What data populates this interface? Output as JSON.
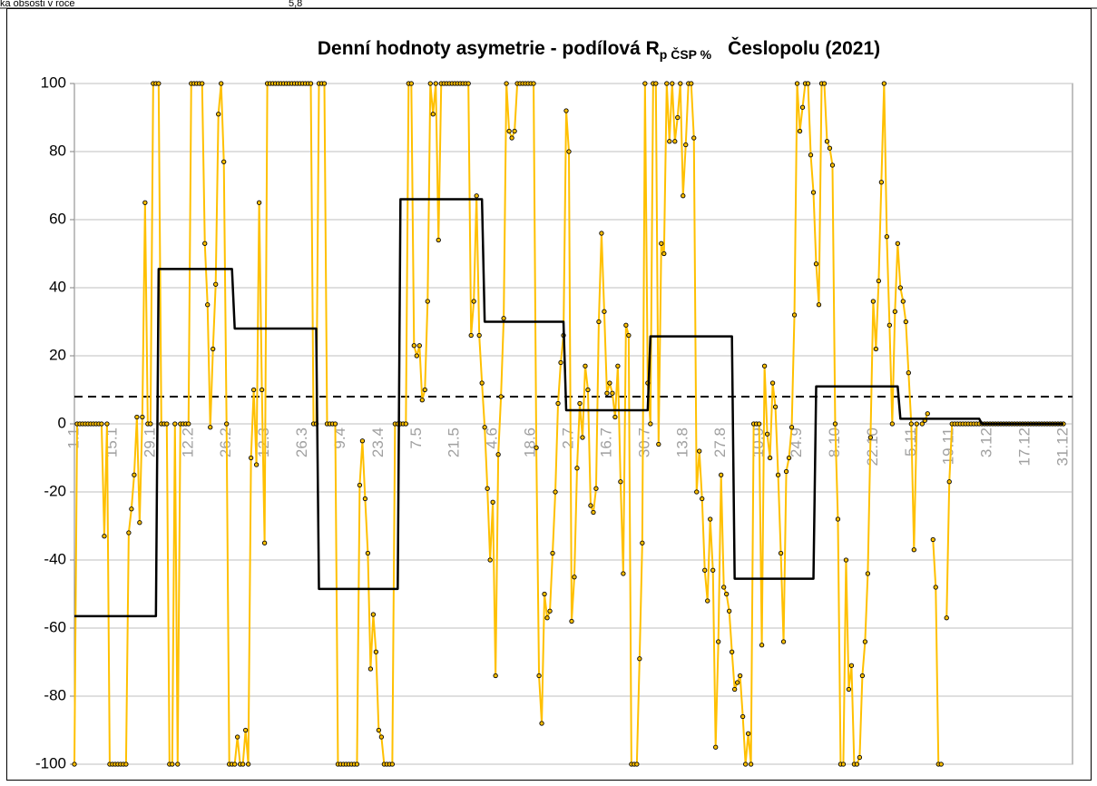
{
  "header_fragment": [
    "ka obsosti v roce",
    "5,8"
  ],
  "chart_data": {
    "type": "line",
    "title": "Denní hodnoty asymetrie - podílová R",
    "title_subscript": "p ČSP %",
    "title_end": "Česlopolu (2021)",
    "categories": [
      "1.1",
      null,
      null,
      null,
      null,
      null,
      null,
      null,
      null,
      null,
      null,
      null,
      null,
      null,
      "15.1",
      null,
      null,
      null,
      null,
      null,
      null,
      null,
      null,
      null,
      null,
      null,
      null,
      null,
      "29.1",
      null,
      null,
      null,
      null,
      null,
      null,
      null,
      null,
      null,
      null,
      null,
      null,
      null,
      "12.2",
      null,
      null,
      null,
      null,
      null,
      null,
      null,
      null,
      null,
      null,
      null,
      null,
      null,
      "26.2",
      null,
      null,
      null,
      null,
      null,
      null,
      null,
      null,
      null,
      null,
      null,
      null,
      null,
      "12.3",
      null,
      null,
      null,
      null,
      null,
      null,
      null,
      null,
      null,
      null,
      null,
      null,
      null,
      "26.3",
      null,
      null,
      null,
      null,
      null,
      null,
      null,
      null,
      null,
      null,
      null,
      null,
      null,
      "9.4",
      null,
      null,
      null,
      null,
      null,
      null,
      null,
      null,
      null,
      null,
      null,
      null,
      null,
      "23.4",
      null,
      null,
      null,
      null,
      null,
      null,
      null,
      null,
      null,
      null,
      null,
      null,
      null,
      "7.5",
      null,
      null,
      null,
      null,
      null,
      null,
      null,
      null,
      null,
      null,
      null,
      null,
      null,
      "21.5",
      null,
      null,
      null,
      null,
      null,
      null,
      null,
      null,
      null,
      null,
      null,
      null,
      null,
      "4.6",
      null,
      null,
      null,
      null,
      null,
      null,
      null,
      null,
      null,
      null,
      null,
      null,
      null,
      "18.6",
      null,
      null,
      null,
      null,
      null,
      null,
      null,
      null,
      null,
      null,
      null,
      null,
      null,
      "2.7",
      null,
      null,
      null,
      null,
      null,
      null,
      null,
      null,
      null,
      null,
      null,
      null,
      null,
      "16.7",
      null,
      null,
      null,
      null,
      null,
      null,
      null,
      null,
      null,
      null,
      null,
      null,
      null,
      "30.7",
      null,
      null,
      null,
      null,
      null,
      null,
      null,
      null,
      null,
      null,
      null,
      null,
      null,
      "13.8",
      null,
      null,
      null,
      null,
      null,
      null,
      null,
      null,
      null,
      null,
      null,
      null,
      null,
      "27.8",
      null,
      null,
      null,
      null,
      null,
      null,
      null,
      null,
      null,
      null,
      null,
      null,
      null,
      "10.9",
      null,
      null,
      null,
      null,
      null,
      null,
      null,
      null,
      null,
      null,
      null,
      null,
      null,
      "24.9",
      null,
      null,
      null,
      null,
      null,
      null,
      null,
      null,
      null,
      null,
      null,
      null,
      null,
      "8.10",
      null,
      null,
      null,
      null,
      null,
      null,
      null,
      null,
      null,
      null,
      null,
      null,
      null,
      "22.10",
      null,
      null,
      null,
      null,
      null,
      null,
      null,
      null,
      null,
      null,
      null,
      null,
      null,
      "5.11",
      null,
      null,
      null,
      null,
      null,
      null,
      null,
      null,
      null,
      null,
      null,
      null,
      null,
      "19.11",
      null,
      null,
      null,
      null,
      null,
      null,
      null,
      null,
      null,
      null,
      null,
      null,
      null,
      "3.12",
      null,
      null,
      null,
      null,
      null,
      null,
      null,
      null,
      null,
      null,
      null,
      null,
      null,
      "17.12",
      null,
      null,
      null,
      null,
      null,
      null,
      null,
      null,
      null,
      null,
      null,
      null,
      null,
      "31.12"
    ],
    "series": [
      {
        "color": "#FFC000",
        "markers": true,
        "values": [
          -100,
          0,
          0,
          0,
          0,
          0,
          0,
          0,
          0,
          0,
          0,
          -33,
          0,
          -100,
          -100,
          -100,
          -100,
          -100,
          -100,
          -100,
          -32,
          -25,
          -15,
          2,
          -29,
          2,
          65,
          0,
          0,
          100,
          100,
          100,
          0,
          0,
          0,
          -100,
          -100,
          0,
          -100,
          0,
          0,
          0,
          0,
          100,
          100,
          100,
          100,
          100,
          53,
          35,
          -1,
          22,
          41,
          91,
          100,
          77,
          0,
          -100,
          -100,
          -100,
          -92,
          -100,
          -100,
          -90,
          -100,
          -10,
          10,
          -12,
          65,
          10,
          -35,
          100,
          100,
          100,
          100,
          100,
          100,
          100,
          100,
          100,
          100,
          100,
          100,
          100,
          100,
          100,
          100,
          100,
          0,
          0,
          100,
          100,
          100,
          0,
          0,
          0,
          0,
          -100,
          -100,
          -100,
          -100,
          -100,
          -100,
          -100,
          -100,
          -18,
          -5,
          -22,
          -38,
          -72,
          -56,
          -67,
          -90,
          -92,
          -100,
          -100,
          -100,
          -100,
          0,
          0,
          0,
          0,
          0,
          100,
          100,
          23,
          20,
          23,
          7,
          10,
          36,
          100,
          91,
          100,
          54,
          100,
          100,
          100,
          100,
          100,
          100,
          100,
          100,
          100,
          100,
          100,
          26,
          36,
          67,
          26,
          12,
          -1,
          -19,
          -40,
          -23,
          -74,
          -9,
          8,
          31,
          100,
          86,
          84,
          86,
          100,
          100,
          100,
          100,
          100,
          100,
          100,
          -7,
          -74,
          -88,
          -50,
          -57,
          -55,
          -38,
          -20,
          6,
          18,
          26,
          92,
          80,
          -58,
          -45,
          -13,
          6,
          -4,
          17,
          10,
          -24,
          -26,
          -19,
          30,
          56,
          33,
          9,
          12,
          9,
          2,
          17,
          -17,
          -44,
          29,
          26,
          -100,
          -100,
          -100,
          -69,
          -35,
          100,
          12,
          0,
          100,
          100,
          -6,
          53,
          50,
          100,
          83,
          100,
          83,
          90,
          100,
          67,
          82,
          100,
          100,
          84,
          -20,
          -8,
          -22,
          -43,
          -52,
          -28,
          -43,
          -95,
          -64,
          -15,
          -48,
          -50,
          -55,
          -67,
          -78,
          -76,
          -74,
          -86,
          -100,
          -91,
          -100,
          0,
          0,
          0,
          -65,
          17,
          -3,
          -10,
          12,
          5,
          -15,
          -38,
          -64,
          -14,
          -10,
          -1,
          32,
          100,
          86,
          93,
          100,
          100,
          79,
          68,
          47,
          35,
          100,
          100,
          83,
          81,
          76,
          0,
          -28,
          -100,
          -100,
          -40,
          -78,
          -71,
          -100,
          -100,
          -98,
          -74,
          -64,
          -44,
          -4,
          36,
          22,
          42,
          71,
          100,
          55,
          29,
          0,
          33,
          53,
          40,
          36,
          30,
          15,
          0,
          -37,
          0,
          null,
          0,
          1,
          3,
          null,
          -34,
          -48,
          -100,
          -100,
          null,
          -57,
          -17,
          0,
          0,
          0,
          0,
          0,
          0,
          0,
          0,
          0,
          0,
          0,
          0,
          0,
          0,
          0,
          0,
          0,
          0,
          0,
          0,
          0,
          0,
          0,
          0,
          0,
          0,
          0,
          0,
          0,
          0,
          0,
          0,
          0,
          0,
          0,
          0,
          0,
          0,
          0,
          0,
          0,
          0
        ]
      },
      {
        "color": "#000000",
        "markers": false,
        "values": [
          -56.5,
          -56.5,
          -56.5,
          -56.5,
          -56.5,
          -56.5,
          -56.5,
          -56.5,
          -56.5,
          -56.5,
          -56.5,
          -56.5,
          -56.5,
          -56.5,
          -56.5,
          -56.5,
          -56.5,
          -56.5,
          -56.5,
          -56.5,
          -56.5,
          -56.5,
          -56.5,
          -56.5,
          -56.5,
          -56.5,
          -56.5,
          -56.5,
          -56.5,
          -56.5,
          -56.5,
          45.5,
          45.5,
          45.5,
          45.5,
          45.5,
          45.5,
          45.5,
          45.5,
          45.5,
          45.5,
          45.5,
          45.5,
          45.5,
          45.5,
          45.5,
          45.5,
          45.5,
          45.5,
          45.5,
          45.5,
          45.5,
          45.5,
          45.5,
          45.5,
          45.5,
          45.5,
          45.5,
          45.5,
          28,
          28,
          28,
          28,
          28,
          28,
          28,
          28,
          28,
          28,
          28,
          28,
          28,
          28,
          28,
          28,
          28,
          28,
          28,
          28,
          28,
          28,
          28,
          28,
          28,
          28,
          28,
          28,
          28,
          28,
          28,
          -48.5,
          -48.5,
          -48.5,
          -48.5,
          -48.5,
          -48.5,
          -48.5,
          -48.5,
          -48.5,
          -48.5,
          -48.5,
          -48.5,
          -48.5,
          -48.5,
          -48.5,
          -48.5,
          -48.5,
          -48.5,
          -48.5,
          -48.5,
          -48.5,
          -48.5,
          -48.5,
          -48.5,
          -48.5,
          -48.5,
          -48.5,
          -48.5,
          -48.5,
          -48.5,
          66,
          66,
          66,
          66,
          66,
          66,
          66,
          66,
          66,
          66,
          66,
          66,
          66,
          66,
          66,
          66,
          66,
          66,
          66,
          66,
          66,
          66,
          66,
          66,
          66,
          66,
          66,
          66,
          66,
          66,
          66,
          30,
          30,
          30,
          30,
          30,
          30,
          30,
          30,
          30,
          30,
          30,
          30,
          30,
          30,
          30,
          30,
          30,
          30,
          30,
          30,
          30,
          30,
          30,
          30,
          30,
          30,
          30,
          30,
          30,
          30,
          4,
          4,
          4,
          4,
          4,
          4,
          4,
          4,
          4,
          4,
          4,
          4,
          4,
          4,
          4,
          4,
          4,
          4,
          4,
          4,
          4,
          4,
          4,
          4,
          4,
          4,
          4,
          4,
          4,
          4,
          4,
          25.7,
          25.7,
          25.7,
          25.7,
          25.7,
          25.7,
          25.7,
          25.7,
          25.7,
          25.7,
          25.7,
          25.7,
          25.7,
          25.7,
          25.7,
          25.7,
          25.7,
          25.7,
          25.7,
          25.7,
          25.7,
          25.7,
          25.7,
          25.7,
          25.7,
          25.7,
          25.7,
          25.7,
          25.7,
          25.7,
          25.7,
          -45.5,
          -45.5,
          -45.5,
          -45.5,
          -45.5,
          -45.5,
          -45.5,
          -45.5,
          -45.5,
          -45.5,
          -45.5,
          -45.5,
          -45.5,
          -45.5,
          -45.5,
          -45.5,
          -45.5,
          -45.5,
          -45.5,
          -45.5,
          -45.5,
          -45.5,
          -45.5,
          -45.5,
          -45.5,
          -45.5,
          -45.5,
          -45.5,
          -45.5,
          -45.5,
          11,
          11,
          11,
          11,
          11,
          11,
          11,
          11,
          11,
          11,
          11,
          11,
          11,
          11,
          11,
          11,
          11,
          11,
          11,
          11,
          11,
          11,
          11,
          11,
          11,
          11,
          11,
          11,
          11,
          11,
          11,
          1.5,
          1.5,
          1.5,
          1.5,
          1.5,
          1.5,
          1.5,
          1.5,
          1.5,
          1.5,
          1.5,
          1.5,
          1.5,
          1.5,
          1.5,
          1.5,
          1.5,
          1.5,
          1.5,
          1.5,
          1.5,
          1.5,
          1.5,
          1.5,
          1.5,
          1.5,
          1.5,
          1.5,
          1.5,
          1.5,
          0,
          0,
          0,
          0,
          0,
          0,
          0,
          0,
          0,
          0,
          0,
          0,
          0,
          0,
          0,
          0,
          0,
          0,
          0,
          0,
          0,
          0,
          0,
          0,
          0,
          0,
          0,
          0,
          0,
          0,
          0
        ]
      }
    ],
    "reference_line": {
      "value": 8,
      "color": "#000000",
      "dashed": true
    },
    "ylim": [
      -100,
      100
    ],
    "yticks": [
      -100,
      -80,
      -60,
      -40,
      -20,
      0,
      20,
      40,
      60,
      80,
      100
    ],
    "grid": true
  }
}
